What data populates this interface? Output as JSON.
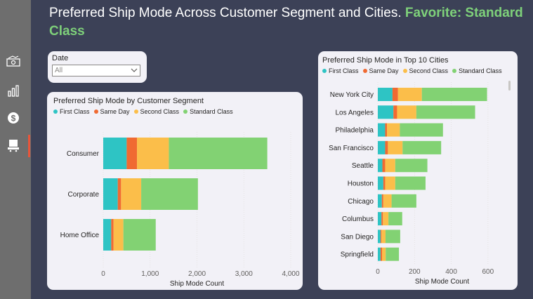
{
  "title": {
    "main": "Preferred Ship Mode Across Customer Segment and Cities.",
    "favorite": "Favorite: Standard Class"
  },
  "sidebar": {
    "icons": [
      "money-icon",
      "bar-chart-icon",
      "dollar-icon",
      "delivery-icon"
    ]
  },
  "filter": {
    "label": "Date",
    "value": "All"
  },
  "colors": {
    "First Class": "#2ec4c4",
    "Same Day": "#f06a32",
    "Second Class": "#fbbe4a",
    "Standard Class": "#82d273"
  },
  "chart_data": [
    {
      "type": "bar",
      "orientation": "horizontal",
      "stacked": true,
      "title": "Preferred Ship Mode by Customer Segment",
      "xlabel": "Ship Mode Count",
      "xlim": [
        0,
        4000
      ],
      "xticks": [
        "0",
        "1,000",
        "2,000",
        "3,000",
        "4,000"
      ],
      "categories": [
        "Consumer",
        "Corporate",
        "Home Office"
      ],
      "series": [
        {
          "name": "First Class",
          "values": [
            500,
            310,
            170
          ]
        },
        {
          "name": "Same Day",
          "values": [
            220,
            70,
            50
          ]
        },
        {
          "name": "Second Class",
          "values": [
            680,
            430,
            210
          ]
        },
        {
          "name": "Standard Class",
          "values": [
            2100,
            1210,
            690
          ]
        }
      ]
    },
    {
      "type": "bar",
      "orientation": "horizontal",
      "stacked": true,
      "title": "Preferred Ship Mode in Top 10 Cities",
      "xlabel": "Ship Mode Count",
      "xlim": [
        0,
        700
      ],
      "xticks": [
        "0",
        "200",
        "400",
        "600"
      ],
      "categories": [
        "New York City",
        "Los Angeles",
        "Philadelphia",
        "San Francisco",
        "Seattle",
        "Houston",
        "Chicago",
        "Columbus",
        "San Diego",
        "Springfield"
      ],
      "series": [
        {
          "name": "First Class",
          "values": [
            80,
            85,
            40,
            40,
            25,
            30,
            22,
            20,
            15,
            15
          ]
        },
        {
          "name": "Same Day",
          "values": [
            30,
            20,
            10,
            15,
            15,
            10,
            8,
            8,
            5,
            8
          ]
        },
        {
          "name": "Second Class",
          "values": [
            130,
            105,
            70,
            80,
            55,
            55,
            45,
            30,
            22,
            20
          ]
        },
        {
          "name": "Standard Class",
          "values": [
            355,
            320,
            235,
            210,
            175,
            165,
            135,
            75,
            80,
            72
          ]
        }
      ]
    }
  ]
}
